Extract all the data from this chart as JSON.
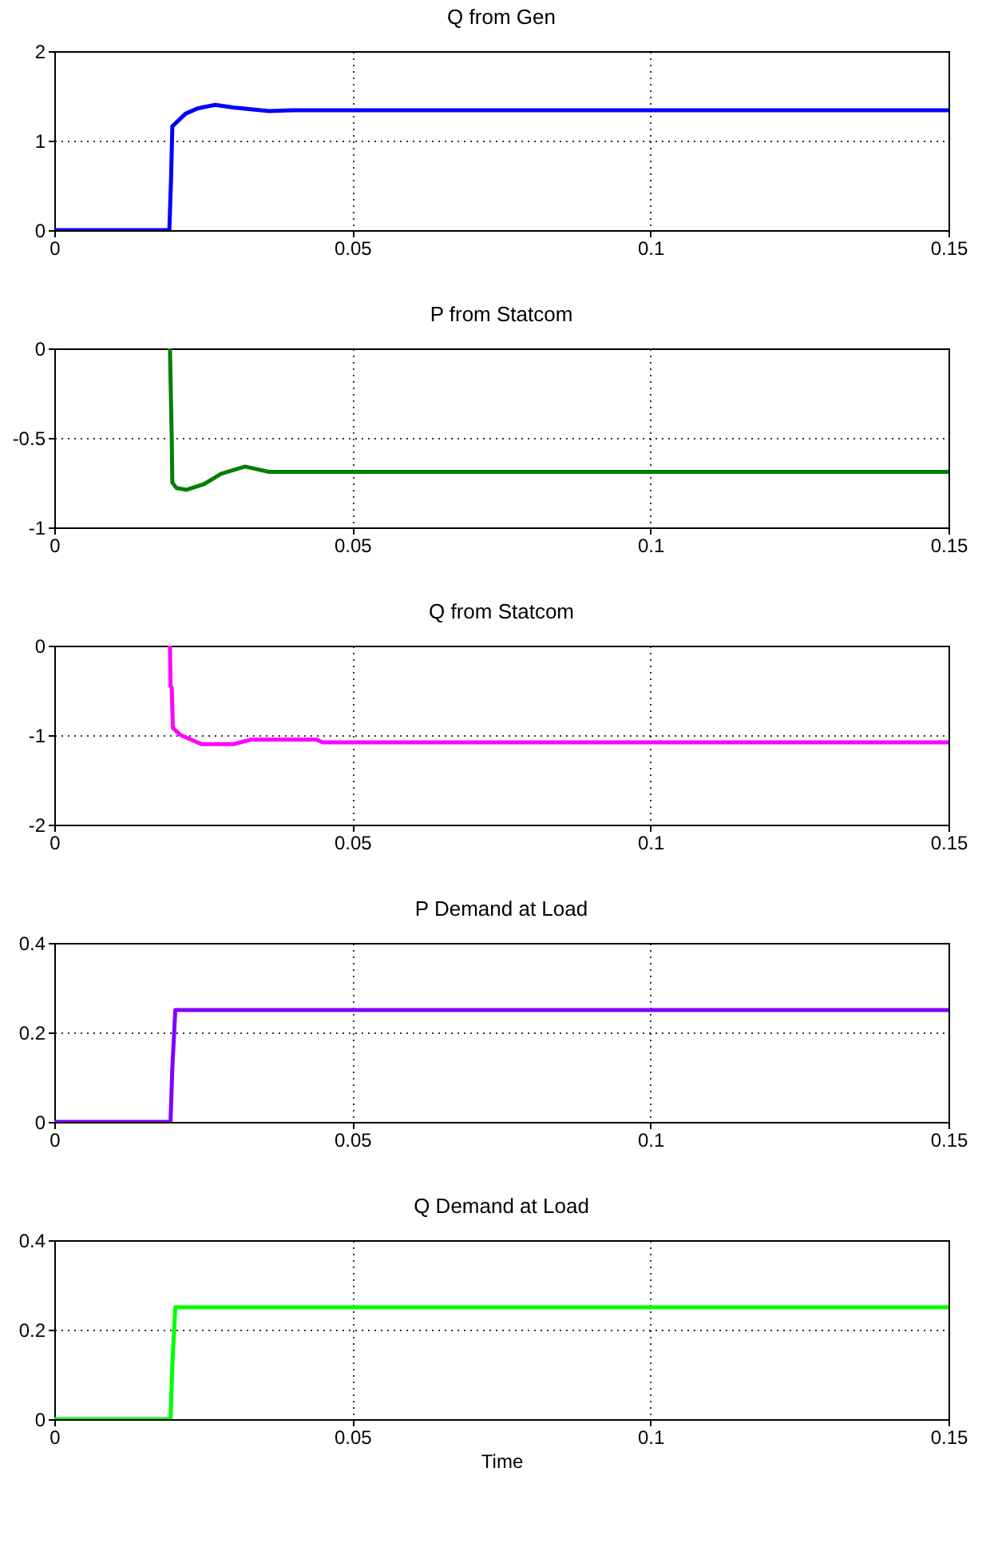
{
  "chart_data": [
    {
      "type": "line",
      "title": "Q from Gen",
      "x": [
        0,
        0.0193,
        0.0196,
        0.0198,
        0.022,
        0.024,
        0.027,
        0.03,
        0.033,
        0.036,
        0.04,
        0.045,
        0.15
      ],
      "values": [
        0,
        0,
        0.6,
        1.16,
        1.3,
        1.36,
        1.4,
        1.37,
        1.35,
        1.33,
        1.34,
        1.34,
        1.34
      ],
      "color": "#0000ff",
      "xlim": [
        0,
        0.15
      ],
      "ylim": [
        0,
        2
      ],
      "xticks": [
        0,
        0.05,
        0.1,
        0.15
      ],
      "yticks": [
        0,
        1,
        2
      ],
      "grid": true
    },
    {
      "type": "line",
      "title": "P from Statcom",
      "x": [
        0.0194,
        0.0197,
        0.0198,
        0.0205,
        0.0222,
        0.025,
        0.028,
        0.032,
        0.036,
        0.15
      ],
      "values": [
        0,
        -0.5,
        -0.75,
        -0.78,
        -0.79,
        -0.76,
        -0.7,
        -0.66,
        -0.69,
        -0.69
      ],
      "color": "#008000",
      "xlim": [
        0,
        0.15
      ],
      "ylim": [
        -1,
        0
      ],
      "xticks": [
        0,
        0.05,
        0.1,
        0.15
      ],
      "yticks": [
        -1,
        -0.5,
        0
      ],
      "grid": true
    },
    {
      "type": "line",
      "title": "Q from Statcom",
      "x": [
        0.0194,
        0.0195,
        0.0197,
        0.0199,
        0.0212,
        0.0247,
        0.03,
        0.033,
        0.044,
        0.045,
        0.15
      ],
      "values": [
        0,
        -0.45,
        -0.47,
        -0.92,
        -1,
        -1.1,
        -1.1,
        -1.05,
        -1.05,
        -1.08,
        -1.08
      ],
      "color": "#ff00ff",
      "xlim": [
        0,
        0.15
      ],
      "ylim": [
        -2,
        0
      ],
      "xticks": [
        0,
        0.05,
        0.1,
        0.15
      ],
      "yticks": [
        -2,
        -1,
        0
      ],
      "grid": true
    },
    {
      "type": "line",
      "title": "P Demand at Load",
      "x": [
        0,
        0.0195,
        0.0198,
        0.0203,
        0.15
      ],
      "values": [
        0,
        0,
        0.12,
        0.25,
        0.25
      ],
      "color": "#8000ff",
      "xlim": [
        0,
        0.15
      ],
      "ylim": [
        0,
        0.4
      ],
      "xticks": [
        0,
        0.05,
        0.1,
        0.15
      ],
      "yticks": [
        0,
        0.2,
        0.4
      ],
      "grid": true
    },
    {
      "type": "line",
      "title": "Q Demand at Load",
      "xlabel": "Time",
      "x": [
        0,
        0.0195,
        0.0198,
        0.0203,
        0.15
      ],
      "values": [
        0,
        0,
        0.12,
        0.25,
        0.25
      ],
      "color": "#00ff00",
      "xlim": [
        0,
        0.15
      ],
      "ylim": [
        0,
        0.4
      ],
      "xticks": [
        0,
        0.05,
        0.1,
        0.15
      ],
      "yticks": [
        0,
        0.2,
        0.4
      ],
      "grid": true
    }
  ]
}
